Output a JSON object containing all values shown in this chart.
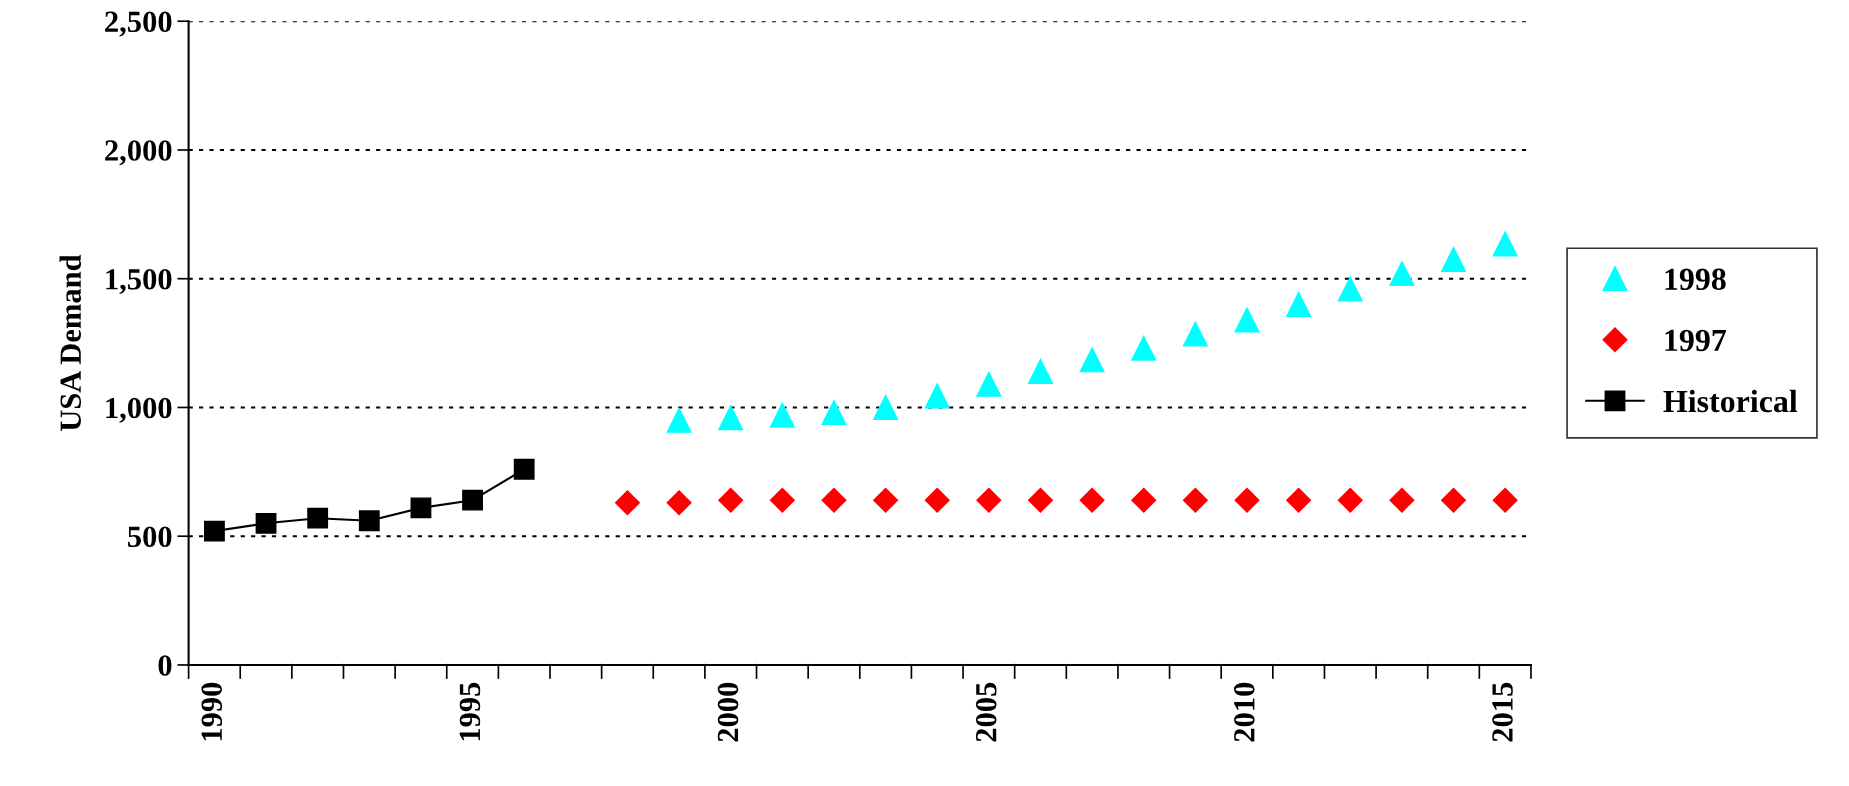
{
  "chart_data": {
    "type": "scatter",
    "ylabel": "USA Demand",
    "categories": [
      "1990",
      null,
      null,
      null,
      null,
      "1995",
      null,
      null,
      null,
      null,
      "2000",
      null,
      null,
      null,
      null,
      "2005",
      null,
      null,
      null,
      null,
      "2010",
      null,
      null,
      null,
      null,
      "2015"
    ],
    "ylim": [
      0,
      2500
    ],
    "yticks": [
      0,
      500,
      {
        "value": 1000,
        "label": "1,000"
      },
      {
        "value": 1500,
        "label": "1,500"
      },
      {
        "value": 2000,
        "label": "2,000"
      },
      {
        "value": 2500,
        "label": "2,500"
      }
    ],
    "grid": "y",
    "legend": "right",
    "series": [
      {
        "name": "1998",
        "marker": "triangle",
        "color": "#00ffff",
        "values": [
          null,
          null,
          null,
          null,
          null,
          null,
          null,
          null,
          null,
          950,
          960,
          970,
          980,
          1000,
          1045,
          1090,
          1140,
          1185,
          1230,
          1285,
          1340,
          1400,
          1460,
          1520,
          1575,
          1635
        ]
      },
      {
        "name": "1997",
        "marker": "diamond",
        "color": "#ff0000",
        "values": [
          null,
          null,
          null,
          null,
          null,
          null,
          null,
          null,
          630,
          630,
          640,
          640,
          640,
          640,
          640,
          640,
          640,
          640,
          640,
          640,
          640,
          640,
          640,
          640,
          640,
          640
        ]
      },
      {
        "name": "Historical",
        "type": "line",
        "marker": "square",
        "line_style": "solid",
        "color": "#000000",
        "values": [
          520,
          550,
          570,
          560,
          610,
          640,
          760,
          null,
          null,
          null,
          null,
          null,
          null,
          null,
          null,
          null,
          null,
          null,
          null,
          null,
          null,
          null,
          null,
          null,
          null,
          null
        ]
      }
    ]
  }
}
